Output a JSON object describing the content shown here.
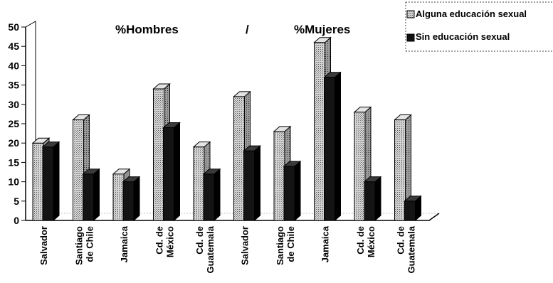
{
  "chart_data": {
    "type": "bar",
    "categories": [
      [
        "Salvador"
      ],
      [
        "Santiago",
        "de Chile"
      ],
      [
        "Jamaica"
      ],
      [
        "Cd. de",
        "México"
      ],
      [
        "Cd. de",
        "Guatemala"
      ],
      [
        "Salvador"
      ],
      [
        "Santiago",
        "de Chile"
      ],
      [
        "Jamaica"
      ],
      [
        "Cd. de",
        "México"
      ],
      [
        "Cd. de",
        "Guatemala"
      ]
    ],
    "group_labels": [
      "%Hombres",
      "/",
      "%Mujeres"
    ],
    "series": [
      {
        "name": "Alguna educación sexual",
        "color": "#b8b8b8",
        "values": [
          20,
          26,
          12,
          34,
          19,
          32,
          23,
          46,
          28,
          26
        ]
      },
      {
        "name": "Sin educación sexual",
        "color": "#111111",
        "values": [
          19,
          12,
          10,
          24,
          12,
          18,
          14,
          37,
          10,
          5
        ]
      }
    ],
    "yticks": [
      0,
      5,
      10,
      15,
      20,
      25,
      30,
      35,
      40,
      45,
      50
    ],
    "ylim": [
      0,
      50
    ],
    "legend_position": "top-right",
    "grid": false
  }
}
